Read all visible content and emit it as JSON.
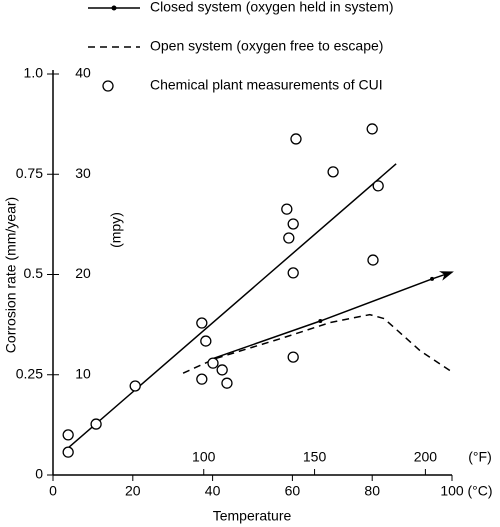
{
  "chart_data": {
    "type": "line",
    "x_label": "Temperature",
    "x_unit": "(°C)",
    "y_label": "Corrosion rate (mm/year)",
    "y2_unit": "(mpy)",
    "x2_unit": "(°F)",
    "xlim": [
      0,
      100
    ],
    "xticks": [
      0,
      20,
      40,
      60,
      80,
      100
    ],
    "ylim": [
      0,
      1
    ],
    "yticks": [
      0,
      {
        "value": 0.25,
        "label": "0.25"
      },
      {
        "value": 0.5,
        "label": "0.5"
      },
      {
        "value": 0.75,
        "label": "0.75"
      },
      {
        "value": 1,
        "label": "1.0"
      }
    ],
    "y2lim": [
      0,
      40
    ],
    "y2ticks": [
      10,
      20,
      30,
      40
    ],
    "x2lim": [
      32,
      212
    ],
    "x2ticks": [
      100,
      150,
      200
    ],
    "series": [
      {
        "name": "Closed system (oxygen held in system)",
        "color": "#000000",
        "line_style": "solid",
        "marker": "dot",
        "arrow": true,
        "x": [
          40,
          67,
          95,
          100
        ],
        "values": [
          0.29,
          0.384,
          0.489,
          0.506
        ]
      },
      {
        "name": "Open system (oxygen free to escape)",
        "color": "#000000",
        "line_style": "dashed",
        "marker": "none",
        "x": [
          32.6,
          40.6,
          57,
          69.4,
          79.4,
          83,
          92,
          100
        ],
        "values": [
          0.254,
          0.29,
          0.34,
          0.38,
          0.4,
          0.39,
          0.31,
          0.257
        ]
      },
      {
        "name": "Chemical plant measurements of CUI",
        "color": "#000000",
        "line_style": "none",
        "marker": "circle",
        "x": [
          3.8,
          3.8,
          10.8,
          20.6,
          37.3,
          38.3,
          37.3,
          40.1,
          42.4,
          43.6,
          60.9,
          58.6,
          60.2,
          59.1,
          60.2,
          60.2,
          70.2,
          80,
          81.5,
          80.2
        ],
        "values": [
          0.1,
          0.057,
          0.127,
          0.222,
          0.379,
          0.334,
          0.239,
          0.279,
          0.262,
          0.229,
          0.838,
          0.663,
          0.626,
          0.591,
          0.504,
          0.294,
          0.756,
          0.863,
          0.721,
          0.536
        ]
      }
    ],
    "trend_line": {
      "color": "#000000",
      "x": [
        3.5,
        86
      ],
      "values": [
        0.065,
        0.776
      ]
    }
  }
}
